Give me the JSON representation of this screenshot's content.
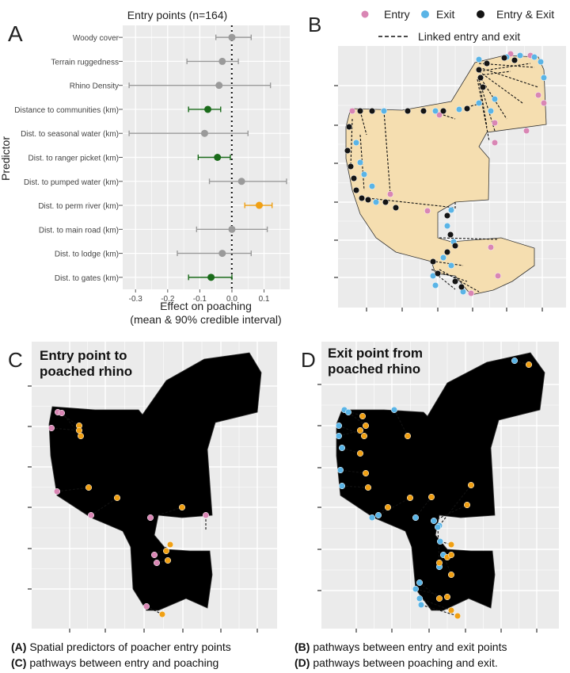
{
  "panel_letters": {
    "a": "A",
    "b": "B",
    "c": "C",
    "d": "D"
  },
  "chart_data": [
    {
      "panel": "A",
      "type": "scatter",
      "title": "Entry points (n=164)",
      "ylabel": "Predictor",
      "xlabel": "Effect on poaching",
      "xlabel2": "(mean & 90% credible interval)",
      "xlim": [
        -0.34,
        0.18
      ],
      "xticks": [
        -0.3,
        -0.2,
        -0.1,
        0.0,
        0.1
      ],
      "xtick_labels": [
        "-0.3",
        "-0.2",
        "-0.1",
        "0.0",
        "0.1"
      ],
      "reference_line": 0,
      "colors": {
        "neutral": "#9a9a9a",
        "negative": "#1a6b1a",
        "positive": "#f0a014"
      },
      "rows": [
        {
          "label": "Woody cover",
          "mean": 0.0,
          "lo": -0.05,
          "hi": 0.06,
          "color": "neutral"
        },
        {
          "label": "Terrain ruggedness",
          "mean": -0.03,
          "lo": -0.14,
          "hi": 0.02,
          "color": "neutral"
        },
        {
          "label": "Rhino Density",
          "mean": -0.04,
          "lo": -0.32,
          "hi": 0.12,
          "color": "neutral"
        },
        {
          "label": "Distance to communities (km)",
          "mean": -0.075,
          "lo": -0.135,
          "hi": -0.035,
          "color": "negative"
        },
        {
          "label": "Dist. to seasonal water (km)",
          "mean": -0.085,
          "lo": -0.32,
          "hi": 0.05,
          "color": "neutral"
        },
        {
          "label": "Dist. to ranger picket (km)",
          "mean": -0.045,
          "lo": -0.105,
          "hi": -0.005,
          "color": "negative"
        },
        {
          "label": "Dist. to pumped water (km)",
          "mean": 0.03,
          "lo": -0.07,
          "hi": 0.17,
          "color": "neutral"
        },
        {
          "label": "Dist. to perm river (km)",
          "mean": 0.085,
          "lo": 0.04,
          "hi": 0.125,
          "color": "positive"
        },
        {
          "label": "Dist. to main road (km)",
          "mean": 0.0,
          "lo": -0.11,
          "hi": 0.11,
          "color": "neutral"
        },
        {
          "label": "Dist. to lodge (km)",
          "mean": -0.03,
          "lo": -0.17,
          "hi": 0.06,
          "color": "neutral"
        },
        {
          "label": "Dist. to gates (km)",
          "mean": -0.065,
          "lo": -0.135,
          "hi": 0.0,
          "color": "negative"
        }
      ]
    },
    {
      "panel": "B",
      "type": "map",
      "legend": [
        "Entry",
        "Exit",
        "Entry & Exit"
      ],
      "legend_line": "Linked entry and exit",
      "colors": {
        "entry": "#d986b4",
        "exit": "#5ab4e6",
        "both": "#141414",
        "park": "#f5deb0"
      }
    },
    {
      "panel": "C",
      "type": "map",
      "title_line1": "Entry point to",
      "title_line2": "poached rhino",
      "colors": {
        "entry": "#d986b4",
        "poached": "#f0a014"
      }
    },
    {
      "panel": "D",
      "type": "map",
      "title_line1": "Exit point from",
      "title_line2": "poached rhino",
      "colors": {
        "exit": "#5ab4e6",
        "poached": "#f0a014"
      }
    }
  ],
  "captions": {
    "line1_left_key": "(A)",
    "line1_left_text": " Spatial predictors of poacher entry points",
    "line1_right_key": "(B)",
    "line1_right_text": " pathways between entry and exit points",
    "line2_left_key": "(C)",
    "line2_left_text": " pathways between entry and poaching",
    "line2_right_key": "(D)",
    "line2_right_text": " pathways between poaching and exit."
  }
}
